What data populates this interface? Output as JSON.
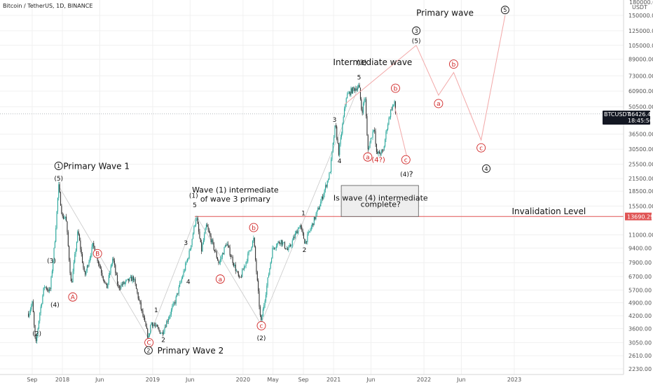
{
  "header": {
    "symbol_title": "Bitcoin / TetherUS, 1D, BINANCE"
  },
  "price_axis": {
    "currency_top": "180000.00",
    "currency_unit": "USDT",
    "ticks": [
      "150000.00",
      "125000.00",
      "105000.00",
      "89000.00",
      "73000.00",
      "60900.00",
      "50500.00",
      "36500.00",
      "30500.00",
      "25500.00",
      "21500.00",
      "18500.00",
      "15500.00",
      "11000.00",
      "9400.00",
      "7900.00",
      "6700.00",
      "5700.00",
      "4900.00",
      "4200.00",
      "3600.00",
      "3050.00",
      "2610.00",
      "2230.00"
    ],
    "current_price": "46426.44",
    "countdown": "18:45:56",
    "symbol_tag": "BTCUSDT",
    "invalidation_tag": "13690.29"
  },
  "time_axis": {
    "ticks": [
      "Sep",
      "2018",
      "Jun",
      "2019",
      "Jun",
      "2020",
      "May",
      "Sep",
      "2021",
      "Jun",
      "2022",
      "Jun",
      "2023"
    ]
  },
  "chart_data": {
    "type": "candlestick",
    "symbol": "BTCUSDT",
    "interval": "1D",
    "exchange": "BINANCE",
    "y_scale": "log",
    "ylim": [
      2230,
      180000
    ],
    "x_range": [
      "2017-08",
      "2023-03"
    ],
    "current_price": 46426.44,
    "invalidation_level": 13690.29,
    "price_path": [
      {
        "date": "2017-08-17",
        "price": 4300
      },
      {
        "date": "2017-09-02",
        "price": 4900
      },
      {
        "date": "2017-09-15",
        "price": 2900
      },
      {
        "date": "2017-10-01",
        "price": 4300
      },
      {
        "date": "2017-10-20",
        "price": 6000
      },
      {
        "date": "2017-11-12",
        "price": 5600
      },
      {
        "date": "2017-12-01",
        "price": 10000
      },
      {
        "date": "2017-12-17",
        "price": 19700
      },
      {
        "date": "2018-01-01",
        "price": 13500
      },
      {
        "date": "2018-01-15",
        "price": 13700
      },
      {
        "date": "2018-02-06",
        "price": 6000
      },
      {
        "date": "2018-03-05",
        "price": 11500
      },
      {
        "date": "2018-04-01",
        "price": 6700
      },
      {
        "date": "2018-05-05",
        "price": 9800
      },
      {
        "date": "2018-06-29",
        "price": 5800
      },
      {
        "date": "2018-07-24",
        "price": 8400
      },
      {
        "date": "2018-08-14",
        "price": 5900
      },
      {
        "date": "2018-10-15",
        "price": 6600
      },
      {
        "date": "2018-11-20",
        "price": 4300
      },
      {
        "date": "2018-12-15",
        "price": 3200
      },
      {
        "date": "2018-12-25",
        "price": 3900
      },
      {
        "date": "2019-02-07",
        "price": 3400
      },
      {
        "date": "2019-04-02",
        "price": 5000
      },
      {
        "date": "2019-05-30",
        "price": 9000
      },
      {
        "date": "2019-06-26",
        "price": 13800
      },
      {
        "date": "2019-07-17",
        "price": 9100
      },
      {
        "date": "2019-08-06",
        "price": 12300
      },
      {
        "date": "2019-09-26",
        "price": 7800
      },
      {
        "date": "2019-10-26",
        "price": 10000
      },
      {
        "date": "2019-12-18",
        "price": 6400
      },
      {
        "date": "2020-02-13",
        "price": 10500
      },
      {
        "date": "2020-03-13",
        "price": 3800
      },
      {
        "date": "2020-04-30",
        "price": 9400
      },
      {
        "date": "2020-06-01",
        "price": 10300
      },
      {
        "date": "2020-07-01",
        "price": 9100
      },
      {
        "date": "2020-08-17",
        "price": 12400
      },
      {
        "date": "2020-09-08",
        "price": 10000
      },
      {
        "date": "2020-11-05",
        "price": 15500
      },
      {
        "date": "2020-12-17",
        "price": 23000
      },
      {
        "date": "2021-01-08",
        "price": 41000
      },
      {
        "date": "2021-01-22",
        "price": 29000
      },
      {
        "date": "2021-02-21",
        "price": 57000
      },
      {
        "date": "2021-03-13",
        "price": 61000
      },
      {
        "date": "2021-04-14",
        "price": 64800
      },
      {
        "date": "2021-04-25",
        "price": 47000
      },
      {
        "date": "2021-05-08",
        "price": 58000
      },
      {
        "date": "2021-05-19",
        "price": 30000
      },
      {
        "date": "2021-06-15",
        "price": 40500
      },
      {
        "date": "2021-06-22",
        "price": 28800
      },
      {
        "date": "2021-07-20",
        "price": 29500
      },
      {
        "date": "2021-08-05",
        "price": 40000
      },
      {
        "date": "2021-08-23",
        "price": 50000
      },
      {
        "date": "2021-09-06",
        "price": 52900
      },
      {
        "date": "2021-09-08",
        "price": 46426
      }
    ],
    "projections": [
      {
        "name": "primary-wave-3-projection",
        "points": [
          {
            "date": "2021-02-15",
            "price": 52000
          },
          {
            "date": "2021-12-01",
            "price": 105000
          }
        ]
      },
      {
        "name": "primary-wave-4-5-projection",
        "points": [
          {
            "date": "2021-12-01",
            "price": 105000
          },
          {
            "date": "2022-03-01",
            "price": 58000
          },
          {
            "date": "2022-05-01",
            "price": 76000
          },
          {
            "date": "2022-08-20",
            "price": 34000
          },
          {
            "date": "2022-11-25",
            "price": 150000
          }
        ]
      },
      {
        "name": "intermediate-wave-4-projection",
        "points": [
          {
            "date": "2021-09-05",
            "price": 50500
          },
          {
            "date": "2021-10-25",
            "price": 27500
          }
        ]
      }
    ],
    "connectors": [
      {
        "points": [
          {
            "date": "2017-12-17",
            "price": 19700
          },
          {
            "date": "2018-12-15",
            "price": 3200
          }
        ]
      },
      {
        "points": [
          {
            "date": "2018-12-15",
            "price": 3200
          },
          {
            "date": "2019-06-26",
            "price": 13800
          }
        ]
      },
      {
        "points": [
          {
            "date": "2019-06-26",
            "price": 13800
          },
          {
            "date": "2020-03-13",
            "price": 3800
          }
        ]
      },
      {
        "points": [
          {
            "date": "2020-03-13",
            "price": 3800
          },
          {
            "date": "2021-04-14",
            "price": 64800
          }
        ]
      }
    ],
    "info_box": {
      "x0": "2021-02-01",
      "x1": "2021-12-10",
      "y_top": 19800,
      "y_bottom": 13690
    },
    "labels": [
      {
        "text": "Primary Wave 1",
        "date": "2018-01-05",
        "price": 25000,
        "style": "black",
        "size": 12
      },
      {
        "text": "1",
        "date": "2017-12-17",
        "price": 25000,
        "style": "black-circle",
        "size": 8
      },
      {
        "text": "(5)",
        "date": "2017-12-17",
        "price": 21600,
        "style": "black",
        "size": 9
      },
      {
        "text": "(3)",
        "date": "2017-11-18",
        "price": 8100,
        "style": "black",
        "size": 9
      },
      {
        "text": "(4)",
        "date": "2017-12-02",
        "price": 4800,
        "style": "black",
        "size": 9
      },
      {
        "text": "(2)",
        "date": "2017-09-20",
        "price": 3400,
        "style": "black",
        "size": 9
      },
      {
        "text": "A",
        "date": "2018-02-12",
        "price": 5250,
        "style": "red-circle",
        "size": 9
      },
      {
        "text": "B",
        "date": "2018-05-23",
        "price": 8800,
        "style": "red-circle",
        "size": 9
      },
      {
        "text": "C",
        "date": "2018-12-17",
        "price": 3050,
        "style": "red-circle",
        "size": 9
      },
      {
        "text": "2",
        "date": "2018-12-15",
        "price": 2780,
        "style": "black-circle",
        "size": 8
      },
      {
        "text": "Primary Wave 2",
        "date": "2019-01-20",
        "price": 2780,
        "style": "black",
        "size": 12
      },
      {
        "text": "1",
        "date": "2019-01-15",
        "price": 4500,
        "style": "black",
        "size": 9
      },
      {
        "text": "2",
        "date": "2019-02-13",
        "price": 3160,
        "style": "black",
        "size": 9
      },
      {
        "text": "3",
        "date": "2019-05-15",
        "price": 10000,
        "style": "black",
        "size": 9
      },
      {
        "text": "4",
        "date": "2019-05-25",
        "price": 6300,
        "style": "black",
        "size": 9
      },
      {
        "text": "(1)",
        "date": "2019-06-15",
        "price": 17600,
        "style": "black",
        "size": 9
      },
      {
        "text": "5",
        "date": "2019-06-20",
        "price": 15700,
        "style": "black",
        "size": 9
      },
      {
        "text": "Wave (1) intermediate",
        "date": "2019-12-01",
        "price": 18800,
        "style": "black",
        "size": 11
      },
      {
        "text": "of wave 3 primary",
        "date": "2019-12-01",
        "price": 16900,
        "style": "black",
        "size": 11
      },
      {
        "text": "a",
        "date": "2019-10-01",
        "price": 6500,
        "style": "red-circle",
        "size": 9
      },
      {
        "text": "b",
        "date": "2020-02-13",
        "price": 12000,
        "style": "red-circle",
        "size": 9
      },
      {
        "text": "c",
        "date": "2020-03-15",
        "price": 3730,
        "style": "red-circle",
        "size": 9
      },
      {
        "text": "(2)",
        "date": "2020-03-15",
        "price": 3220,
        "style": "black",
        "size": 9
      },
      {
        "text": "1",
        "date": "2020-09-01",
        "price": 14300,
        "style": "black",
        "size": 9
      },
      {
        "text": "2",
        "date": "2020-09-05",
        "price": 9200,
        "style": "black",
        "size": 9
      },
      {
        "text": "3",
        "date": "2021-01-05",
        "price": 43500,
        "style": "black",
        "size": 9
      },
      {
        "text": "4",
        "date": "2021-01-25",
        "price": 26600,
        "style": "black",
        "size": 9
      },
      {
        "text": "5",
        "date": "2021-04-14",
        "price": 72000,
        "style": "black",
        "size": 9
      },
      {
        "text": "Intermediate wave",
        "date": "2020-12-30",
        "price": 86000,
        "style": "black",
        "size": 12
      },
      {
        "text": "(3)",
        "date": "2021-04-25",
        "price": 86000,
        "style": "black",
        "size": 10
      },
      {
        "text": "a",
        "date": "2021-05-19",
        "price": 27800,
        "style": "red-circle",
        "size": 9
      },
      {
        "text": "(4?)",
        "date": "2021-07-01",
        "price": 27000,
        "style": "red",
        "size": 10
      },
      {
        "text": "b",
        "date": "2021-09-08",
        "price": 63000,
        "style": "red-circle",
        "size": 9
      },
      {
        "text": "c",
        "date": "2021-10-20",
        "price": 26900,
        "style": "red-circle",
        "size": 9
      },
      {
        "text": "(4)",
        "date": "2021-10-15",
        "price": 22700,
        "style": "black",
        "size": 9
      },
      {
        "text": "?",
        "date": "2021-11-10",
        "price": 22700,
        "style": "black",
        "size": 11
      },
      {
        "text": "Is wave (4) intermediate",
        "date": "2021-07-10",
        "price": 17100,
        "style": "black",
        "size": 11
      },
      {
        "text": "complete?",
        "date": "2021-07-10",
        "price": 15900,
        "style": "black",
        "size": 11
      },
      {
        "text": "Invalidation Level",
        "date": "2022-12-22",
        "price": 14600,
        "style": "black",
        "size": 12
      },
      {
        "text": "Primary wave",
        "date": "2021-12-01",
        "price": 155000,
        "style": "black",
        "size": 12
      },
      {
        "text": "3",
        "date": "2021-12-01",
        "price": 125000,
        "style": "black-circle",
        "size": 8
      },
      {
        "text": "(5)",
        "date": "2021-12-01",
        "price": 111000,
        "style": "black",
        "size": 9
      },
      {
        "text": "a",
        "date": "2022-03-01",
        "price": 52500,
        "style": "red-circle",
        "size": 9
      },
      {
        "text": "b",
        "date": "2022-05-01",
        "price": 84000,
        "style": "red-circle",
        "size": 9
      },
      {
        "text": "c",
        "date": "2022-08-20",
        "price": 31000,
        "style": "red-circle",
        "size": 9
      },
      {
        "text": "4",
        "date": "2022-09-10",
        "price": 24200,
        "style": "black-circle",
        "size": 8
      },
      {
        "text": "5",
        "date": "2022-11-25",
        "price": 160000,
        "style": "black-circle",
        "size": 8
      }
    ]
  },
  "colors": {
    "bull": "#26a69a",
    "bear": "#333333",
    "red": "#d02525",
    "invalidation": "#e05555",
    "projection": "#f2a8a8",
    "connector": "#c9c9c9",
    "grid": "#f0f0f0"
  }
}
